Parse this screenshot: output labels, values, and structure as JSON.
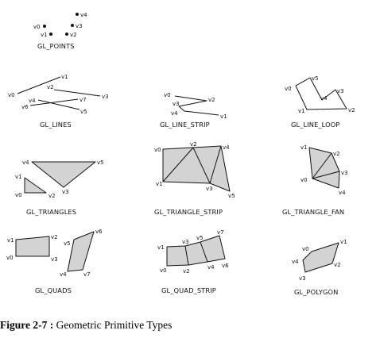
{
  "caption": {
    "label": "Figure 2-7 :",
    "text": " Geometric Primitive Types"
  },
  "colors": {
    "fill": "#d3d3d3",
    "stroke": "#111111",
    "text": "#111111"
  },
  "panels": {
    "points": {
      "title": "GL_POINTS",
      "labels": [
        "v4",
        "v0",
        "v3",
        "v1",
        "v2"
      ]
    },
    "lines": {
      "title": "GL_LINES",
      "labels": [
        "v1",
        "v0",
        "v2",
        "v3",
        "v4",
        "v7",
        "v6",
        "v5"
      ]
    },
    "line_strip": {
      "title": "GL_LINE_STRIP",
      "labels": [
        "v0",
        "v2",
        "v3",
        "v4",
        "v1"
      ]
    },
    "line_loop": {
      "title": "GL_LINE_LOOP",
      "labels": [
        "v0",
        "v5",
        "v3",
        "v4",
        "v1",
        "v2"
      ]
    },
    "triangles": {
      "title": "GL_TRIANGLES",
      "labels": [
        "v4",
        "v5",
        "v1",
        "v3",
        "v0",
        "v2"
      ]
    },
    "triangle_strip": {
      "title": "GL_TRIANGLE_STRIP",
      "labels": [
        "v0",
        "v2",
        "v4",
        "v1",
        "v3",
        "v5"
      ]
    },
    "triangle_fan": {
      "title": "GL_TRIANGLE_FAN",
      "labels": [
        "v1",
        "v2",
        "v3",
        "v0",
        "v4"
      ]
    },
    "quads": {
      "title": "GL_QUADS",
      "labels": [
        "v1",
        "v2",
        "v5",
        "v6",
        "v0",
        "v3",
        "v4",
        "v7"
      ]
    },
    "quad_strip": {
      "title": "GL_QUAD_STRIP",
      "labels": [
        "v7",
        "v3",
        "v5",
        "v1",
        "v6",
        "v0",
        "v2",
        "v4"
      ]
    },
    "polygon": {
      "title": "GL_POLYGON",
      "labels": [
        "v0",
        "v1",
        "v4",
        "v2",
        "v3"
      ]
    }
  }
}
